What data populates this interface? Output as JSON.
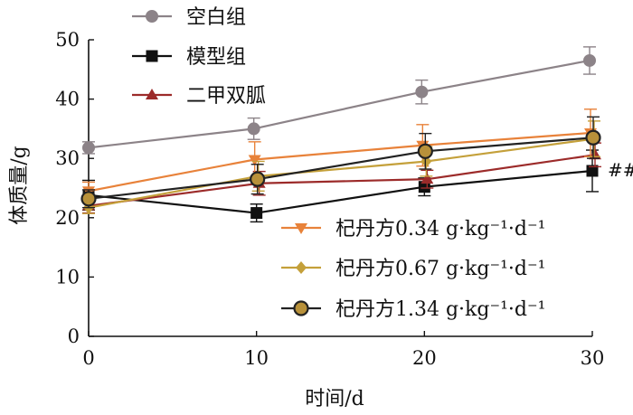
{
  "chart_data": {
    "type": "line",
    "xlabel": "时间/d",
    "ylabel": "体质量/g",
    "x": [
      0,
      10,
      20,
      30
    ],
    "xlim": [
      0,
      30
    ],
    "ylim": [
      0,
      50
    ],
    "x_ticks": [
      "0",
      "10",
      "20",
      "30"
    ],
    "y_ticks": [
      "0",
      "10",
      "20",
      "30",
      "40",
      "50"
    ],
    "grid": false,
    "series": [
      {
        "name": "空白组",
        "values": [
          31.8,
          35.0,
          41.2,
          46.5
        ],
        "err": [
          1.0,
          1.8,
          2.0,
          2.3
        ],
        "color": "#8c8388",
        "marker": "circle"
      },
      {
        "name": "模型组",
        "values": [
          23.8,
          20.8,
          25.2,
          27.9
        ],
        "err": [
          2.5,
          1.5,
          1.5,
          3.5
        ],
        "color": "#111111",
        "marker": "square"
      },
      {
        "name": "二甲双胍",
        "values": [
          22.0,
          25.8,
          26.5,
          30.6
        ],
        "err": [
          1.2,
          2.0,
          1.5,
          2.0
        ],
        "color": "#9c2b2a",
        "marker": "triangle-up"
      },
      {
        "name": "杞丹方0.34 g·kg⁻¹·d⁻¹",
        "values": [
          24.5,
          29.8,
          32.2,
          34.3
        ],
        "err": [
          1.5,
          3.0,
          3.5,
          4.0
        ],
        "color": "#e8823a",
        "marker": "triangle-down"
      },
      {
        "name": "杞丹方0.67 g·kg⁻¹·d⁻¹",
        "values": [
          21.7,
          27.0,
          29.5,
          33.3
        ],
        "err": [
          1.0,
          2.5,
          2.5,
          3.0
        ],
        "color": "#c4a03a",
        "marker": "diamond"
      },
      {
        "name": "杞丹方1.34 g·kg⁻¹·d⁻¹",
        "values": [
          23.2,
          26.5,
          31.2,
          33.5
        ],
        "err": [
          1.5,
          2.5,
          3.0,
          3.5
        ],
        "color": "#222222",
        "fill": "#b8913a",
        "marker": "circle-outline"
      }
    ],
    "annotations": [
      {
        "text": "##"
      }
    ],
    "legend_position": "top-left and lower-right"
  }
}
